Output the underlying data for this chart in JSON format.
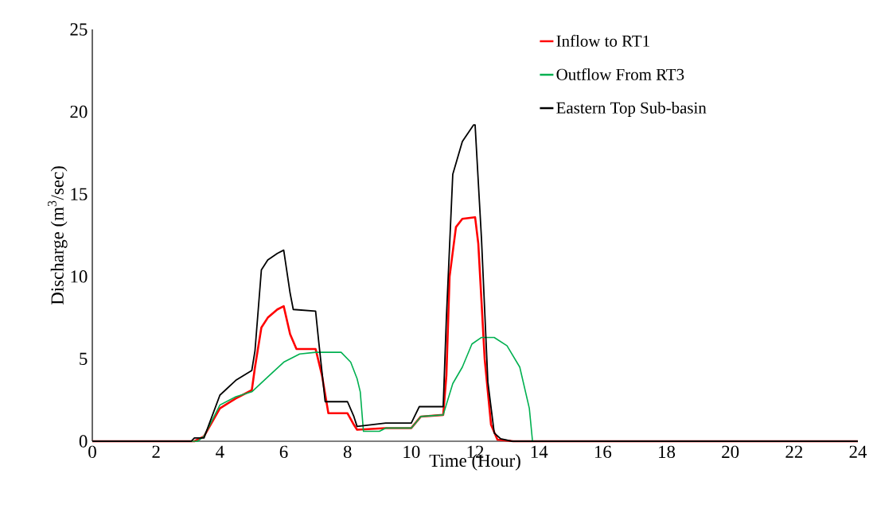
{
  "chart_data": {
    "type": "line",
    "xlabel": "Time (Hour)",
    "ylabel": "Discharge (m$^{3}$/sec)",
    "xlim": [
      0,
      24
    ],
    "ylim": [
      0,
      25
    ],
    "xticks": [
      0,
      2,
      4,
      6,
      8,
      10,
      12,
      14,
      16,
      18,
      20,
      22,
      24
    ],
    "yticks": [
      0,
      5,
      10,
      15,
      20,
      25
    ],
    "grid": false,
    "legend": "top right",
    "marker": "none",
    "line_style": "solid",
    "series": [
      {
        "name": "Inflow to RT1",
        "color": "#ff0000",
        "x": [
          0,
          3.2,
          3.5,
          4,
          4.5,
          5,
          5.1,
          5.3,
          5.5,
          5.8,
          6,
          6.2,
          6.4,
          7,
          7.2,
          7.4,
          8,
          8.2,
          8.3,
          9.2,
          10,
          10.3,
          11,
          11.1,
          11.2,
          11.4,
          11.6,
          12,
          12.1,
          12.3,
          12.5,
          12.7,
          13.2,
          24
        ],
        "values": [
          0,
          0,
          0.3,
          2.0,
          2.6,
          3.1,
          4.5,
          6.9,
          7.5,
          8.0,
          8.2,
          6.5,
          5.6,
          5.6,
          4.0,
          1.7,
          1.7,
          1.0,
          0.7,
          0.8,
          0.8,
          1.5,
          1.6,
          4.0,
          10.0,
          13.0,
          13.5,
          13.6,
          12.0,
          5.0,
          1.0,
          0.1,
          0,
          0
        ]
      },
      {
        "name": "Outflow From RT3",
        "color": "#00b050",
        "x": [
          0,
          3.3,
          3.5,
          4,
          4.5,
          5,
          5.5,
          6,
          6.5,
          7,
          7.8,
          8.1,
          8.3,
          8.4,
          8.5,
          9,
          9.2,
          10,
          10.3,
          11,
          11.3,
          11.6,
          11.9,
          12.2,
          12.6,
          13,
          13.4,
          13.7,
          13.8,
          24
        ],
        "values": [
          0,
          0,
          0.3,
          2.2,
          2.7,
          3.0,
          3.9,
          4.8,
          5.3,
          5.4,
          5.4,
          4.8,
          3.8,
          3.0,
          0.6,
          0.6,
          0.8,
          0.8,
          1.5,
          1.6,
          3.5,
          4.5,
          5.9,
          6.3,
          6.3,
          5.8,
          4.5,
          2.0,
          0,
          0
        ]
      },
      {
        "name": "Eastern Top Sub-basin",
        "color": "#000000",
        "x": [
          0,
          3.1,
          3.2,
          3.5,
          4,
          4.5,
          5,
          5.1,
          5.3,
          5.5,
          5.8,
          6,
          6.2,
          6.3,
          7,
          7.1,
          7.3,
          8,
          8.2,
          8.3,
          9.2,
          10,
          10.25,
          11,
          11.1,
          11.3,
          11.6,
          11.95,
          12,
          12.2,
          12.4,
          12.6,
          12.8,
          13.15,
          24
        ],
        "values": [
          0,
          0,
          0.2,
          0.2,
          2.8,
          3.7,
          4.3,
          5.5,
          10.4,
          11.0,
          11.4,
          11.6,
          9.0,
          8.0,
          7.9,
          6.0,
          2.4,
          2.4,
          1.5,
          0.9,
          1.1,
          1.1,
          2.1,
          2.1,
          7.5,
          16.2,
          18.2,
          19.2,
          19.2,
          12.3,
          3.6,
          0.5,
          0.15,
          0,
          0
        ]
      }
    ]
  }
}
